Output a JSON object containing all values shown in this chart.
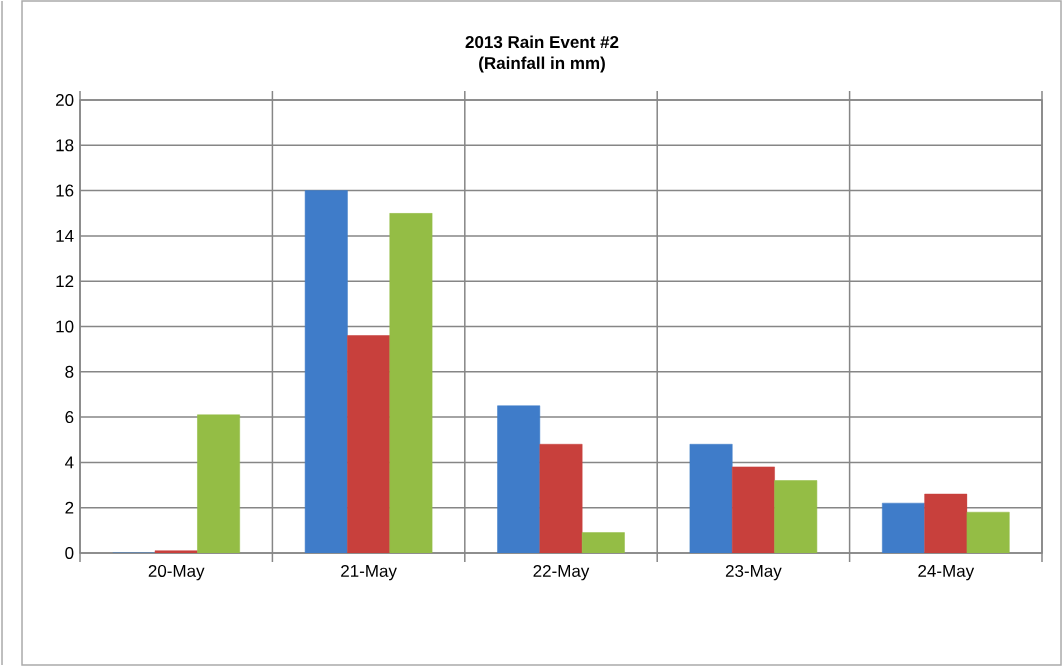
{
  "chart_data": {
    "type": "bar",
    "title": "2013 Rain Event #2",
    "subtitle": "(Rainfall in mm)",
    "categories": [
      "20-May",
      "21-May",
      "22-May",
      "23-May",
      "24-May"
    ],
    "series": [
      {
        "color": "#3f7cc9",
        "values": [
          0,
          16,
          6.5,
          4.8,
          2.2
        ]
      },
      {
        "color": "#c8403c",
        "values": [
          0.1,
          9.6,
          4.8,
          3.8,
          2.6
        ]
      },
      {
        "color": "#94bd45",
        "values": [
          6.1,
          15,
          0.9,
          3.2,
          1.8
        ]
      }
    ],
    "ylim": [
      0,
      20
    ],
    "yticks": [
      0,
      2,
      4,
      6,
      8,
      10,
      12,
      14,
      16,
      18,
      20
    ],
    "grid": true
  }
}
